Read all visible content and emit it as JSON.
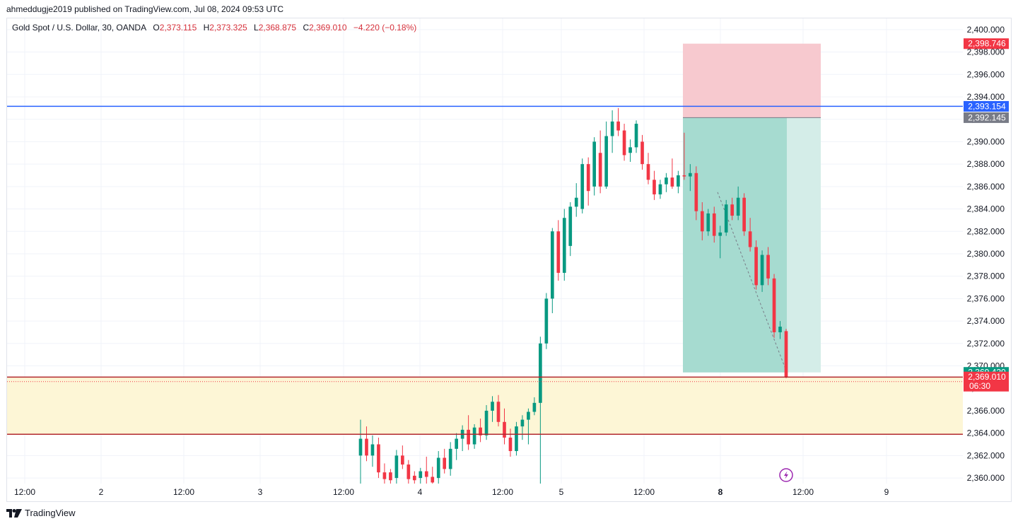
{
  "header": {
    "published": "ahmeddugje2019 published on TradingView.com, Jul 08, 2024 09:53 UTC"
  },
  "legend": {
    "symbol": "Gold Spot / U.S. Dollar, 30, OANDA",
    "o_label": "O",
    "o_value": "2,373.115",
    "h_label": "H",
    "h_value": "2,373.325",
    "l_label": "L",
    "l_value": "2,368.875",
    "c_label": "C",
    "c_value": "2,369.010",
    "change": "−4.220 (−0.18%)"
  },
  "footer": {
    "brand": "TradingView",
    "logo_icon": "tradingview-logo-icon"
  },
  "colors": {
    "up": "#089981",
    "down": "#f23645",
    "blue_line": "#2962ff",
    "zone_fill": "#fdf6d6",
    "zone_border": "#b2292e",
    "stop_fill": "#f7c9cf",
    "target_fill": "#b2dfd6",
    "target_fill_dark": "#8fd0c4"
  },
  "chart_data": {
    "type": "candlestick",
    "instrument": "Gold Spot / U.S. Dollar",
    "timeframe": "30",
    "exchange": "OANDA",
    "ylim": [
      2359.5,
      2401
    ],
    "y_ticks": [
      "2,400.000",
      "2,398.000",
      "2,396.000",
      "2,394.000",
      "2,392.000",
      "2,390.000",
      "2,388.000",
      "2,386.000",
      "2,384.000",
      "2,382.000",
      "2,380.000",
      "2,378.000",
      "2,376.000",
      "2,374.000",
      "2,372.000",
      "2,370.000",
      "2,368.000",
      "2,366.000",
      "2,364.000",
      "2,362.000",
      "2,360.000"
    ],
    "x_ticks": [
      {
        "label": "12:00",
        "bold": false
      },
      {
        "label": "2",
        "bold": false
      },
      {
        "label": "12:00",
        "bold": false
      },
      {
        "label": "3",
        "bold": false
      },
      {
        "label": "12:00",
        "bold": false
      },
      {
        "label": "4",
        "bold": false
      },
      {
        "label": "12:00",
        "bold": false
      },
      {
        "label": "5",
        "bold": false
      },
      {
        "label": "12:00",
        "bold": false
      },
      {
        "label": "8",
        "bold": true
      },
      {
        "label": "12:00",
        "bold": false
      },
      {
        "label": "9",
        "bold": false
      }
    ],
    "price_labels": [
      {
        "text": "2,398.746",
        "price": 2398.746,
        "color": "#f23645"
      },
      {
        "text": "2,393.154",
        "price": 2393.154,
        "color": "#2962ff"
      },
      {
        "text": "2,392.145",
        "price": 2392.145,
        "color": "#787b86"
      },
      {
        "text": "2,369.420",
        "price": 2369.42,
        "color": "#089981"
      },
      {
        "text": "2,369.010",
        "price": 2369.01,
        "color": "#f23645",
        "sub": "06:30"
      }
    ],
    "horizontal_lines": [
      {
        "price": 2393.154,
        "color": "#2962ff"
      },
      {
        "price": 2369.0,
        "color": "#b2292e"
      },
      {
        "price": 2363.9,
        "color": "#b2292e"
      }
    ],
    "zone": {
      "top": 2369.0,
      "bottom": 2363.9
    },
    "short_position": {
      "entry": 2392.145,
      "stop": 2398.746,
      "target": 2369.42
    },
    "candles": [
      {
        "o": 2362.0,
        "h": 2365.2,
        "l": 2359.0,
        "c": 2363.5
      },
      {
        "o": 2363.5,
        "h": 2364.6,
        "l": 2361.5,
        "c": 2362.0
      },
      {
        "o": 2362.0,
        "h": 2363.8,
        "l": 2361.0,
        "c": 2363.0
      },
      {
        "o": 2363.0,
        "h": 2363.6,
        "l": 2360.0,
        "c": 2360.5
      },
      {
        "o": 2360.5,
        "h": 2361.3,
        "l": 2359.2,
        "c": 2359.9
      },
      {
        "o": 2360.5,
        "h": 2360.8,
        "l": 2359.3,
        "c": 2359.8
      },
      {
        "o": 2360.0,
        "h": 2362.5,
        "l": 2359.5,
        "c": 2362.0
      },
      {
        "o": 2362.0,
        "h": 2362.9,
        "l": 2360.8,
        "c": 2361.2
      },
      {
        "o": 2361.2,
        "h": 2361.6,
        "l": 2359.5,
        "c": 2359.9
      },
      {
        "o": 2360.2,
        "h": 2360.6,
        "l": 2359.4,
        "c": 2359.8
      },
      {
        "o": 2360.0,
        "h": 2360.9,
        "l": 2359.5,
        "c": 2360.6
      },
      {
        "o": 2360.6,
        "h": 2361.9,
        "l": 2359.3,
        "c": 2360.1
      },
      {
        "o": 2360.1,
        "h": 2361.0,
        "l": 2359.0,
        "c": 2359.6
      },
      {
        "o": 2360.0,
        "h": 2362.4,
        "l": 2359.4,
        "c": 2361.8
      },
      {
        "o": 2361.8,
        "h": 2362.6,
        "l": 2360.4,
        "c": 2360.8
      },
      {
        "o": 2360.8,
        "h": 2363.2,
        "l": 2360.2,
        "c": 2362.6
      },
      {
        "o": 2362.6,
        "h": 2364.0,
        "l": 2361.6,
        "c": 2363.5
      },
      {
        "o": 2363.5,
        "h": 2364.7,
        "l": 2362.4,
        "c": 2364.3
      },
      {
        "o": 2364.3,
        "h": 2365.6,
        "l": 2362.5,
        "c": 2363.0
      },
      {
        "o": 2363.0,
        "h": 2364.8,
        "l": 2362.6,
        "c": 2364.5
      },
      {
        "o": 2364.5,
        "h": 2365.3,
        "l": 2363.2,
        "c": 2363.8
      },
      {
        "o": 2363.8,
        "h": 2366.5,
        "l": 2363.4,
        "c": 2366.0
      },
      {
        "o": 2366.0,
        "h": 2367.3,
        "l": 2365.0,
        "c": 2366.8
      },
      {
        "o": 2366.8,
        "h": 2367.4,
        "l": 2364.6,
        "c": 2365.0
      },
      {
        "o": 2365.0,
        "h": 2366.2,
        "l": 2363.0,
        "c": 2363.6
      },
      {
        "o": 2363.6,
        "h": 2364.4,
        "l": 2361.9,
        "c": 2362.4
      },
      {
        "o": 2362.4,
        "h": 2365.0,
        "l": 2362.0,
        "c": 2364.6
      },
      {
        "o": 2364.6,
        "h": 2365.6,
        "l": 2363.4,
        "c": 2365.2
      },
      {
        "o": 2365.2,
        "h": 2366.2,
        "l": 2363.0,
        "c": 2365.9
      },
      {
        "o": 2365.9,
        "h": 2367.2,
        "l": 2365.6,
        "c": 2366.7
      },
      {
        "o": 2366.7,
        "h": 2372.6,
        "l": 2359.2,
        "c": 2372.0
      },
      {
        "o": 2372.0,
        "h": 2376.5,
        "l": 2371.5,
        "c": 2376.0
      },
      {
        "o": 2376.0,
        "h": 2382.3,
        "l": 2374.7,
        "c": 2382.0
      },
      {
        "o": 2382.0,
        "h": 2383.0,
        "l": 2377.6,
        "c": 2378.3
      },
      {
        "o": 2378.3,
        "h": 2384.0,
        "l": 2377.6,
        "c": 2383.2
      },
      {
        "o": 2380.7,
        "h": 2384.6,
        "l": 2379.8,
        "c": 2384.2
      },
      {
        "o": 2384.2,
        "h": 2386.3,
        "l": 2383.3,
        "c": 2385.0
      },
      {
        "o": 2384.0,
        "h": 2388.5,
        "l": 2383.6,
        "c": 2388.0
      },
      {
        "o": 2388.0,
        "h": 2388.6,
        "l": 2384.3,
        "c": 2385.6
      },
      {
        "o": 2386.0,
        "h": 2390.4,
        "l": 2385.2,
        "c": 2390.0
      },
      {
        "o": 2389.0,
        "h": 2391.0,
        "l": 2385.4,
        "c": 2386.0
      },
      {
        "o": 2386.0,
        "h": 2391.8,
        "l": 2385.8,
        "c": 2390.5
      },
      {
        "o": 2390.5,
        "h": 2392.8,
        "l": 2389.0,
        "c": 2391.8
      },
      {
        "o": 2391.8,
        "h": 2393.0,
        "l": 2390.5,
        "c": 2391.0
      },
      {
        "o": 2391.0,
        "h": 2391.6,
        "l": 2388.3,
        "c": 2388.8
      },
      {
        "o": 2389.0,
        "h": 2390.2,
        "l": 2388.2,
        "c": 2389.5
      },
      {
        "o": 2389.5,
        "h": 2391.9,
        "l": 2389.0,
        "c": 2391.6
      },
      {
        "o": 2390.0,
        "h": 2390.6,
        "l": 2387.5,
        "c": 2388.0
      },
      {
        "o": 2388.0,
        "h": 2389.0,
        "l": 2386.2,
        "c": 2386.6
      },
      {
        "o": 2386.6,
        "h": 2387.4,
        "l": 2384.8,
        "c": 2385.3
      },
      {
        "o": 2385.3,
        "h": 2386.6,
        "l": 2384.9,
        "c": 2386.2
      },
      {
        "o": 2386.2,
        "h": 2387.2,
        "l": 2385.5,
        "c": 2386.8
      },
      {
        "o": 2386.8,
        "h": 2388.5,
        "l": 2385.8,
        "c": 2386.0
      },
      {
        "o": 2386.0,
        "h": 2387.4,
        "l": 2385.4,
        "c": 2387.0
      },
      {
        "o": 2387.0,
        "h": 2390.8,
        "l": 2386.6,
        "c": 2386.9
      },
      {
        "o": 2386.9,
        "h": 2388.0,
        "l": 2385.6,
        "c": 2387.2
      },
      {
        "o": 2387.2,
        "h": 2387.8,
        "l": 2383.0,
        "c": 2383.8
      },
      {
        "o": 2383.8,
        "h": 2384.6,
        "l": 2381.2,
        "c": 2382.0
      },
      {
        "o": 2382.0,
        "h": 2384.0,
        "l": 2381.6,
        "c": 2383.6
      },
      {
        "o": 2383.6,
        "h": 2384.2,
        "l": 2381.0,
        "c": 2381.6
      },
      {
        "o": 2381.6,
        "h": 2382.5,
        "l": 2379.6,
        "c": 2381.9
      },
      {
        "o": 2381.9,
        "h": 2384.8,
        "l": 2381.6,
        "c": 2384.4
      },
      {
        "o": 2384.4,
        "h": 2385.0,
        "l": 2383.0,
        "c": 2383.4
      },
      {
        "o": 2383.4,
        "h": 2386.0,
        "l": 2383.0,
        "c": 2385.0
      },
      {
        "o": 2385.0,
        "h": 2385.4,
        "l": 2381.6,
        "c": 2382.0
      },
      {
        "o": 2382.0,
        "h": 2383.2,
        "l": 2380.2,
        "c": 2380.6
      },
      {
        "o": 2380.6,
        "h": 2381.2,
        "l": 2376.8,
        "c": 2377.2
      },
      {
        "o": 2377.2,
        "h": 2380.3,
        "l": 2376.6,
        "c": 2379.9
      },
      {
        "o": 2379.9,
        "h": 2380.6,
        "l": 2377.2,
        "c": 2377.8
      },
      {
        "o": 2377.8,
        "h": 2378.2,
        "l": 2372.5,
        "c": 2373.0
      },
      {
        "o": 2373.0,
        "h": 2374.0,
        "l": 2372.4,
        "c": 2373.5
      },
      {
        "o": 2373.1,
        "h": 2373.3,
        "l": 2368.9,
        "c": 2369.0
      }
    ]
  }
}
